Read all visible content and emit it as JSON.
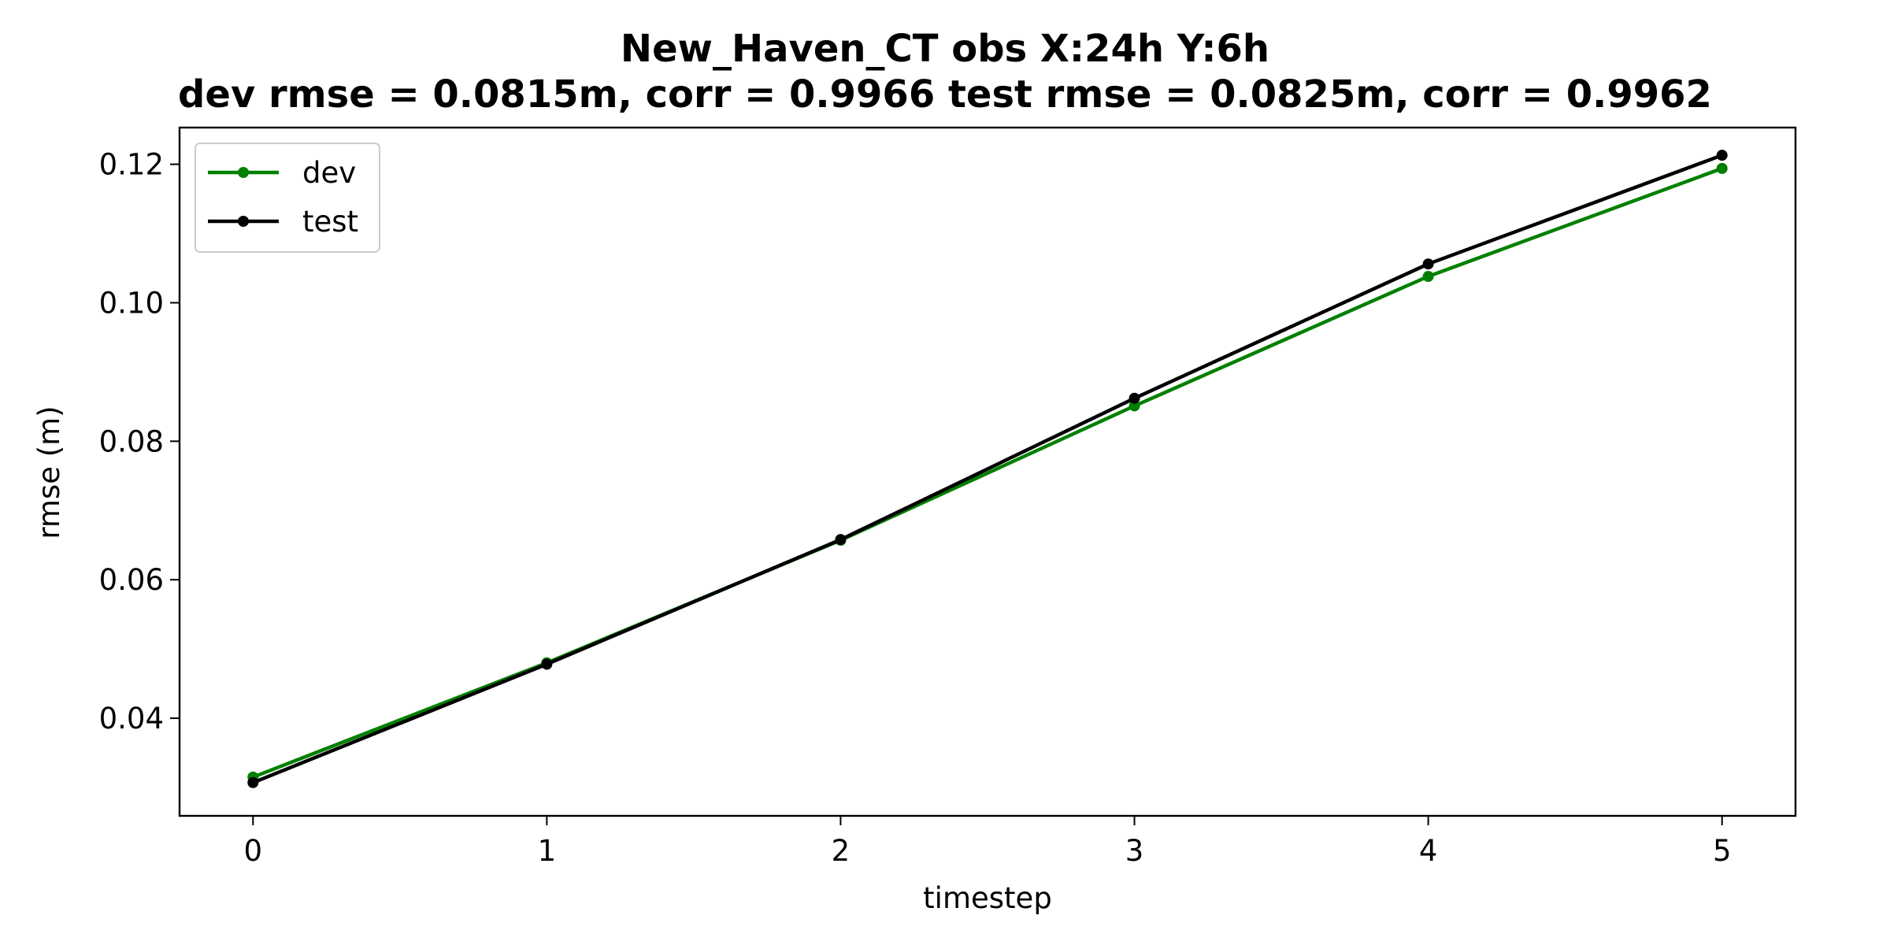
{
  "chart_data": {
    "type": "line",
    "title": "New_Haven_CT   obs   X:24h   Y:6h",
    "subtitle": "dev rmse = 0.0815m, corr = 0.9966   test rmse = 0.0825m, corr = 0.9962",
    "xlabel": "timestep",
    "ylabel": "rmse (m)",
    "x": [
      0,
      1,
      2,
      3,
      4,
      5
    ],
    "xlim": [
      -0.25,
      5.25
    ],
    "ylim": [
      0.0259,
      0.1253
    ],
    "xticks": [
      0,
      1,
      2,
      3,
      4,
      5
    ],
    "yticks": [
      0.04,
      0.06,
      0.08,
      0.1,
      0.12
    ],
    "ytick_labels": [
      "0.04",
      "0.06",
      "0.08",
      "0.10",
      "0.12"
    ],
    "grid": false,
    "legend_position": "upper-left",
    "series": [
      {
        "name": "dev",
        "color": "#008000",
        "values": [
          0.0315,
          0.048,
          0.0657,
          0.0851,
          0.1038,
          0.1194
        ]
      },
      {
        "name": "test",
        "color": "#000000",
        "values": [
          0.0307,
          0.0478,
          0.0658,
          0.0862,
          0.1056,
          0.1213
        ]
      }
    ]
  }
}
